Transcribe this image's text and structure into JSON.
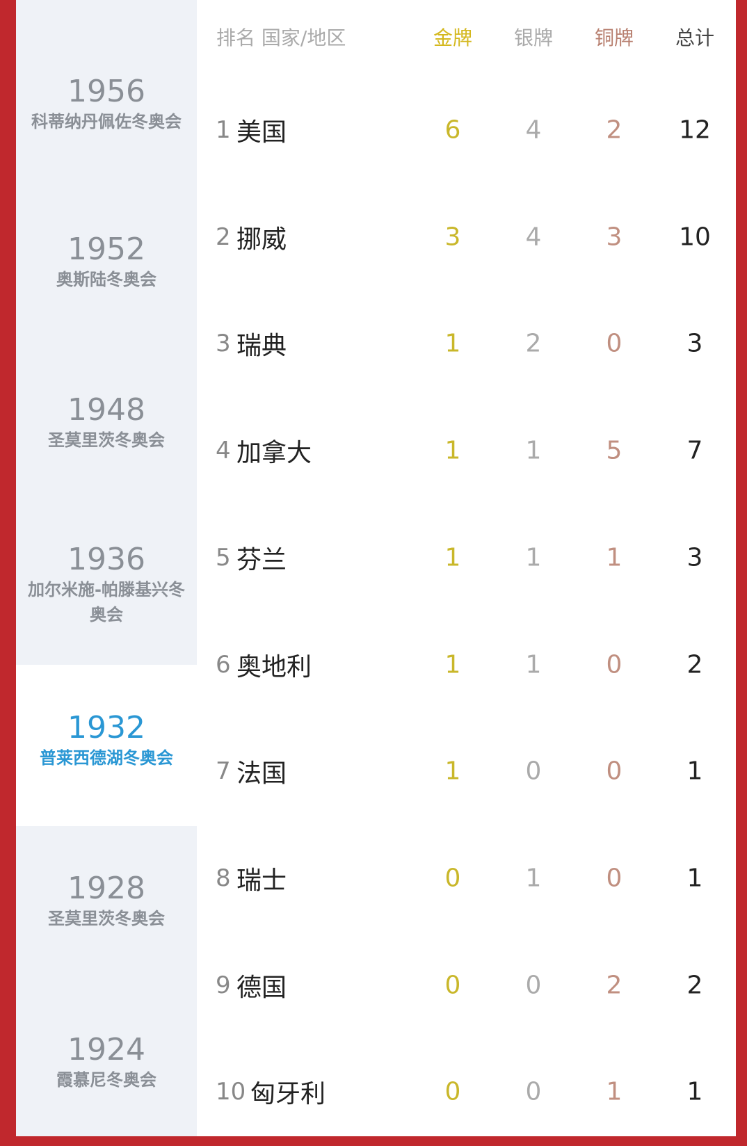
{
  "sidebar": [
    {
      "year": "1956",
      "name": "科蒂纳丹佩佐冬奥会"
    },
    {
      "year": "1952",
      "name": "奥斯陆冬奥会"
    },
    {
      "year": "1948",
      "name": "圣莫里茨冬奥会"
    },
    {
      "year": "1936",
      "name": "加尔米施-帕滕基兴冬奥会"
    },
    {
      "year": "1932",
      "name": "普莱西德湖冬奥会"
    },
    {
      "year": "1928",
      "name": "圣莫里茨冬奥会"
    },
    {
      "year": "1924",
      "name": "霞慕尼冬奥会"
    }
  ],
  "table": {
    "header": [
      "排名 国家/地区",
      "金牌",
      "银牌",
      "铜牌",
      "总计"
    ],
    "rows": [
      [
        1,
        "美国",
        6,
        4,
        2,
        12
      ],
      [
        2,
        "挪威",
        3,
        4,
        3,
        10
      ],
      [
        3,
        "瑞典",
        1,
        2,
        0,
        3
      ],
      [
        4,
        "加拿大",
        1,
        1,
        5,
        7
      ],
      [
        5,
        "芬兰",
        1,
        1,
        1,
        3
      ],
      [
        6,
        "奥地利",
        1,
        1,
        0,
        2
      ],
      [
        7,
        "法国",
        1,
        0,
        0,
        1
      ],
      [
        8,
        "瑞士",
        0,
        1,
        0,
        1
      ],
      [
        9,
        "德国",
        0,
        0,
        2,
        2
      ],
      [
        10,
        "匈牙利",
        0,
        0,
        1,
        1
      ]
    ]
  }
}
